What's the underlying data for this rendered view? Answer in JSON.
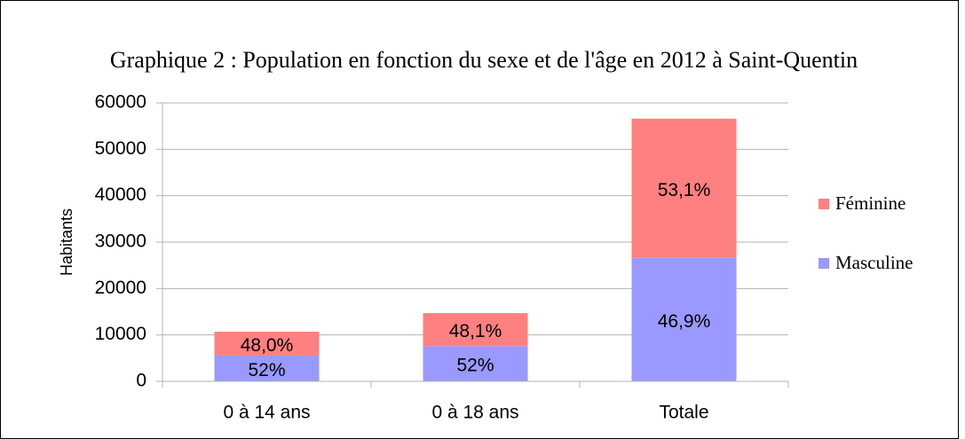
{
  "chart_data": {
    "type": "stacked_bar",
    "title": "Graphique 2 : Population en fonction du sexe et de l'âge en 2012 à Saint-Quentin",
    "y_label": "Habitants",
    "categories": [
      "0 à 14 ans",
      "0 à 18 ans",
      "Totale"
    ],
    "series": [
      {
        "name": "Masculine",
        "color": "#9999ff",
        "values": [
          5560,
          7600,
          26600
        ],
        "labels": [
          "52%",
          "52%",
          "46,9%"
        ]
      },
      {
        "name": "Féminine",
        "color": "#ff8080",
        "values": [
          5140,
          7100,
          30000
        ],
        "labels": [
          "48,0%",
          "48,1%",
          "53,1%"
        ]
      }
    ],
    "ylim": [
      0,
      60000
    ],
    "yticks": [
      0,
      10000,
      20000,
      30000,
      40000,
      50000,
      60000
    ],
    "grid": true,
    "legend": "right"
  }
}
